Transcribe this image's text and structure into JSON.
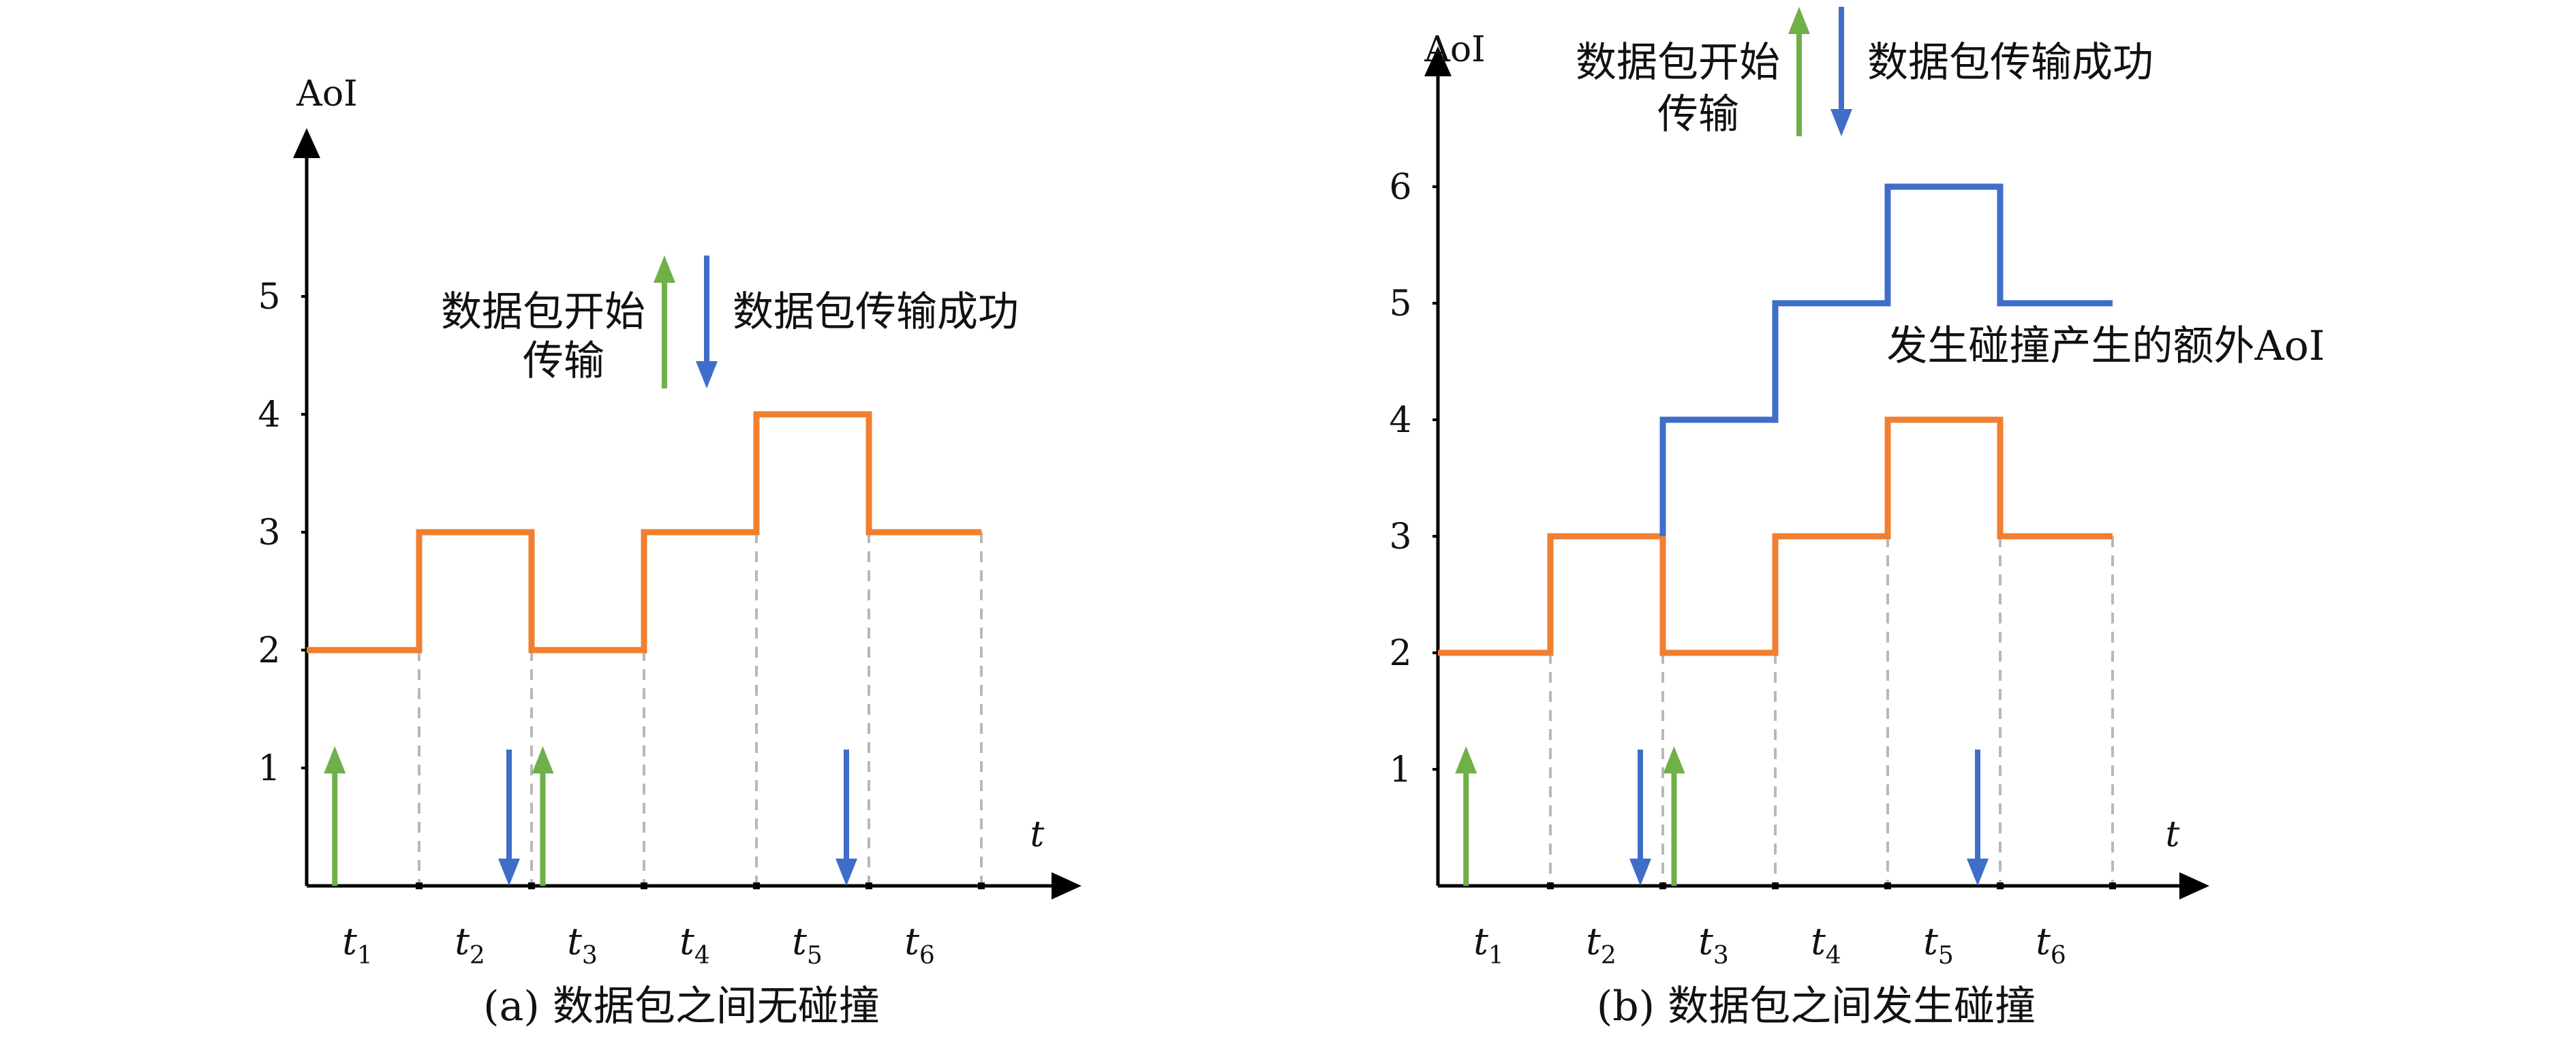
{
  "colors": {
    "orange": "#f07f30",
    "blue": "#3f6ec8",
    "green": "#6fb04a",
    "axis": "#000000",
    "dash": "#b8b8b8"
  },
  "chart_data": [
    {
      "type": "line",
      "step": "post",
      "caption": "(a) 数据包之间无碰撞",
      "ylabel": "AoI",
      "xlabel": "t",
      "y_ticks": [
        "1",
        "2",
        "3",
        "4",
        "5"
      ],
      "x_ticks": [
        {
          "base": "t",
          "sub": "1"
        },
        {
          "base": "t",
          "sub": "2"
        },
        {
          "base": "t",
          "sub": "3"
        },
        {
          "base": "t",
          "sub": "4"
        },
        {
          "base": "t",
          "sub": "5"
        },
        {
          "base": "t",
          "sub": "6"
        }
      ],
      "ylim": [
        0,
        5
      ],
      "xlim": [
        0,
        6
      ],
      "series": [
        {
          "color_key": "orange",
          "x": [
            0,
            1,
            2,
            3,
            4,
            5,
            6
          ],
          "y": [
            2,
            3,
            2,
            3,
            4,
            3,
            3
          ]
        }
      ],
      "legend": {
        "start_label_line1": "数据包开始",
        "start_label_line2": "传输",
        "success_label": "数据包传输成功"
      },
      "markers": [
        {
          "kind": "start",
          "x": 0.25
        },
        {
          "kind": "success",
          "x": 1.8
        },
        {
          "kind": "start",
          "x": 2.1
        },
        {
          "kind": "success",
          "x": 4.8
        }
      ]
    },
    {
      "type": "line",
      "step": "post",
      "caption": "(b) 数据包之间发生碰撞",
      "ylabel": "AoI",
      "xlabel": "t",
      "y_ticks": [
        "1",
        "2",
        "3",
        "4",
        "5",
        "6"
      ],
      "x_ticks": [
        {
          "base": "t",
          "sub": "1"
        },
        {
          "base": "t",
          "sub": "2"
        },
        {
          "base": "t",
          "sub": "3"
        },
        {
          "base": "t",
          "sub": "4"
        },
        {
          "base": "t",
          "sub": "5"
        },
        {
          "base": "t",
          "sub": "6"
        }
      ],
      "ylim": [
        0,
        6
      ],
      "xlim": [
        0,
        6
      ],
      "series": [
        {
          "color_key": "orange",
          "x": [
            0,
            1,
            2,
            3,
            4,
            5,
            6
          ],
          "y": [
            2,
            3,
            2,
            3,
            4,
            3,
            3
          ]
        },
        {
          "color_key": "blue",
          "x": [
            2,
            3,
            4,
            5,
            6
          ],
          "y": [
            4,
            5,
            6,
            5,
            5
          ],
          "from_y": 3
        }
      ],
      "annotation": "发生碰撞产生的额外AoI",
      "legend": {
        "start_label_line1": "数据包开始",
        "start_label_line2": "传输",
        "success_label": "数据包传输成功"
      },
      "markers": [
        {
          "kind": "start",
          "x": 0.25
        },
        {
          "kind": "success",
          "x": 1.8
        },
        {
          "kind": "start",
          "x": 2.1
        },
        {
          "kind": "success",
          "x": 4.8
        }
      ]
    }
  ]
}
